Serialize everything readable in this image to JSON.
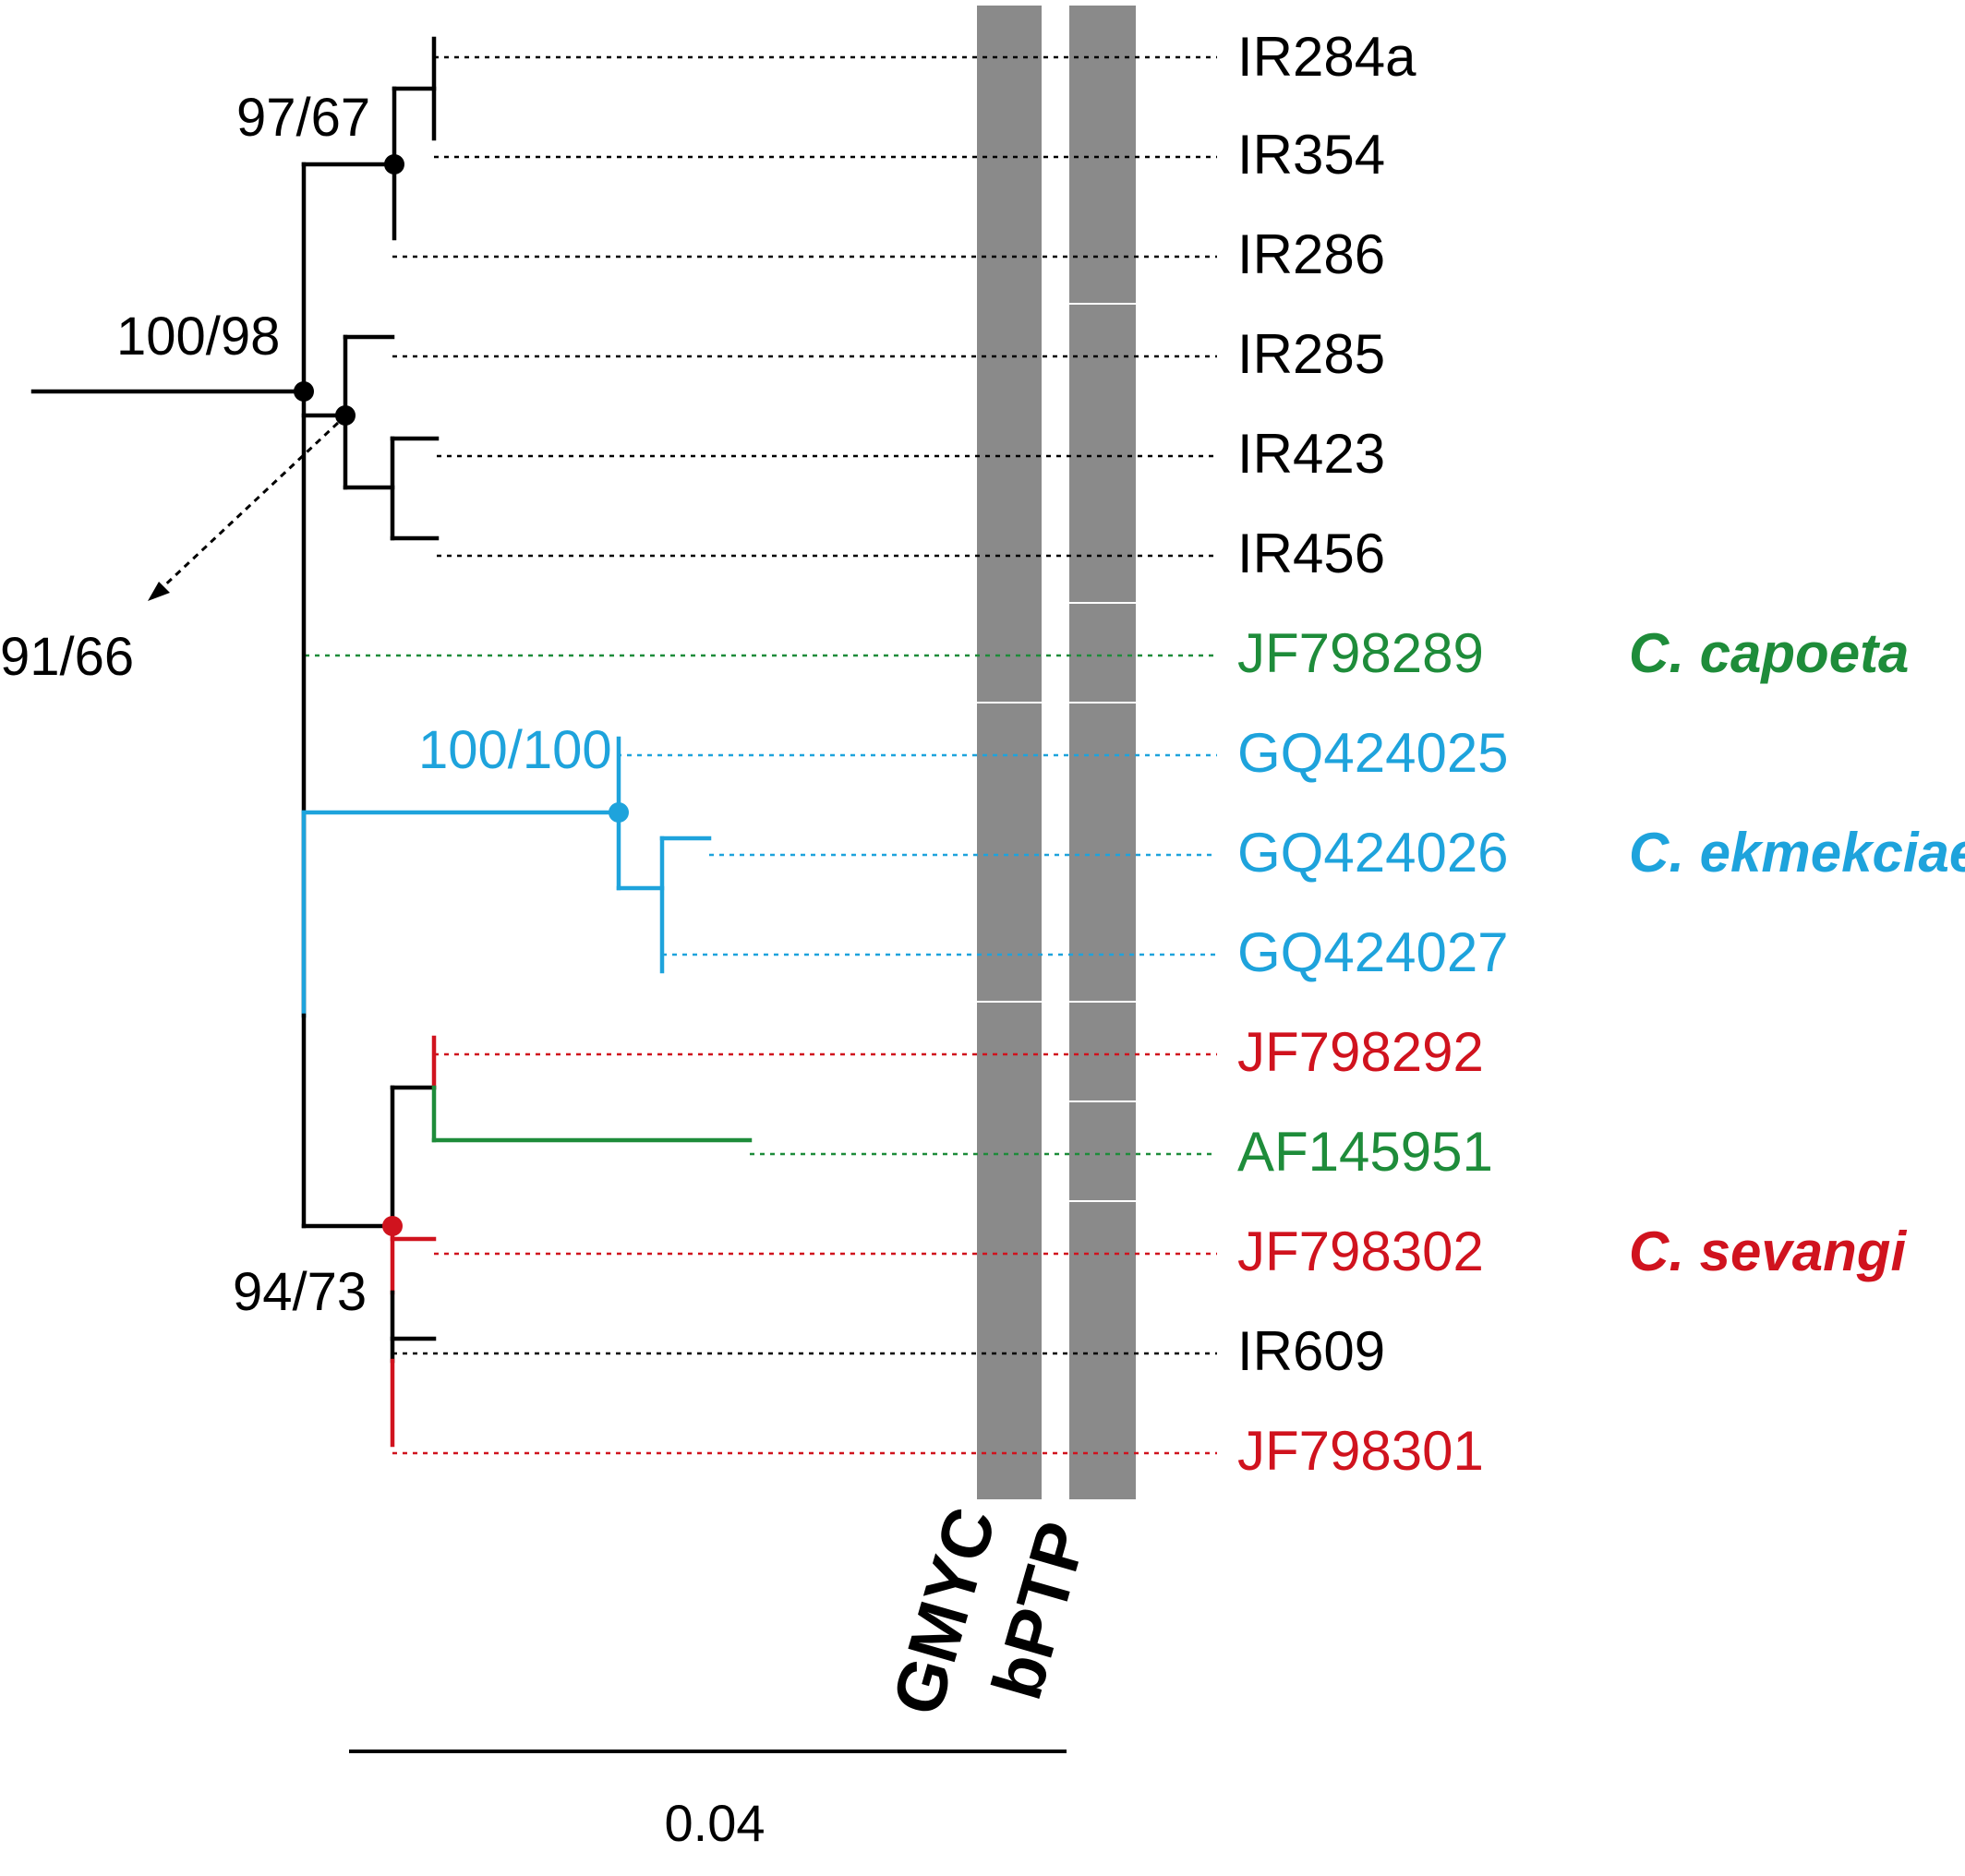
{
  "colors": {
    "default": "#000000",
    "capoeta": "#1e8c3a",
    "ekmekciae": "#1ea3dc",
    "sevangi": "#d0131e",
    "delimitation_bar": "#8a8a8a"
  },
  "taxa": [
    {
      "label": "IR284a",
      "color": "default"
    },
    {
      "label": "IR354",
      "color": "default"
    },
    {
      "label": "IR286",
      "color": "default"
    },
    {
      "label": "IR285",
      "color": "default"
    },
    {
      "label": "IR423",
      "color": "default"
    },
    {
      "label": "IR456",
      "color": "default"
    },
    {
      "label": "JF798289",
      "color": "capoeta"
    },
    {
      "label": "GQ424025",
      "color": "ekmekciae"
    },
    {
      "label": "GQ424026",
      "color": "ekmekciae"
    },
    {
      "label": "GQ424027",
      "color": "ekmekciae"
    },
    {
      "label": "JF798292",
      "color": "sevangi"
    },
    {
      "label": "AF145951",
      "color": "capoeta"
    },
    {
      "label": "JF798302",
      "color": "sevangi"
    },
    {
      "label": "IR609",
      "color": "default"
    },
    {
      "label": "JF798301",
      "color": "sevangi"
    }
  ],
  "support_values": [
    {
      "text": "97/67",
      "color": "default"
    },
    {
      "text": "100/98",
      "color": "default"
    },
    {
      "text": "91/66",
      "color": "default"
    },
    {
      "text": "100/100",
      "color": "ekmekciae"
    },
    {
      "text": "94/73",
      "color": "default"
    }
  ],
  "species_labels": [
    {
      "text": "C. capoeta",
      "color": "capoeta"
    },
    {
      "text": "C. ekmekciae",
      "color": "ekmekciae"
    },
    {
      "text": "C. sevangi",
      "color": "sevangi"
    }
  ],
  "delimitation_methods": [
    "GMYC",
    "bPTP"
  ],
  "delimitation": {
    "GMYC": [
      [
        "IR284a",
        "JF798289"
      ],
      [
        "GQ424025",
        "GQ424027"
      ],
      [
        "JF798292",
        "JF798301"
      ]
    ],
    "bPTP": [
      [
        "IR284a",
        "IR286"
      ],
      [
        "IR285",
        "IR456"
      ],
      [
        "JF798289",
        "JF798289"
      ],
      [
        "GQ424025",
        "GQ424027"
      ],
      [
        "JF798292",
        "JF798292"
      ],
      [
        "AF145951",
        "AF145951"
      ],
      [
        "JF798302",
        "JF798301"
      ]
    ]
  },
  "scale_bar": {
    "label": "0.04"
  }
}
